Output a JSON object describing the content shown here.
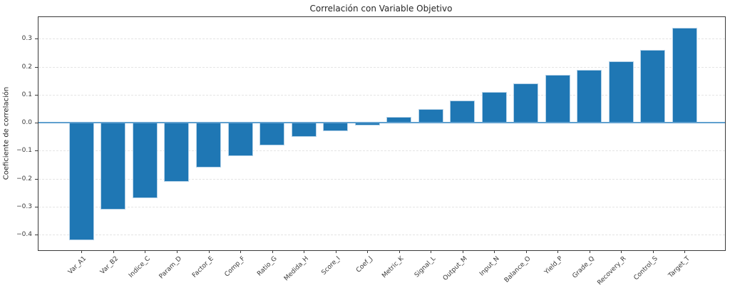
{
  "chart_data": {
    "type": "bar",
    "title": "Correlación con Variable Objetivo",
    "xlabel": "",
    "ylabel": "Coeficiente de correlación",
    "categories": [
      "Var_A1",
      "Var_B2",
      "Indice_C",
      "Param_D",
      "Factor_E",
      "Comp_F",
      "Ratio_G",
      "Medida_H",
      "Score_I",
      "Coef_J",
      "Metric_K",
      "Signal_L",
      "Output_M",
      "Input_N",
      "Balance_O",
      "Yield_P",
      "Grade_Q",
      "Recovery_R",
      "Control_S",
      "Target_T"
    ],
    "values": [
      -0.42,
      -0.31,
      -0.27,
      -0.21,
      -0.16,
      -0.12,
      -0.08,
      -0.05,
      -0.03,
      -0.01,
      0.02,
      0.05,
      0.08,
      0.11,
      0.14,
      0.17,
      0.19,
      0.22,
      0.26,
      0.34
    ],
    "yticks": [
      0.3,
      0.2,
      0.1,
      0.0,
      -0.1,
      -0.2,
      -0.3,
      -0.4
    ],
    "ylim": [
      -0.455,
      0.377
    ],
    "grid": "horizontal-dashed",
    "legend": "none",
    "colors": {
      "bar": "#1f77b4",
      "bar_edge": "#b5d2e8",
      "zero_line": "#60a0cf",
      "grid": "#e4e4e4",
      "spine": "#3a3a3a",
      "text": "#262626"
    }
  }
}
